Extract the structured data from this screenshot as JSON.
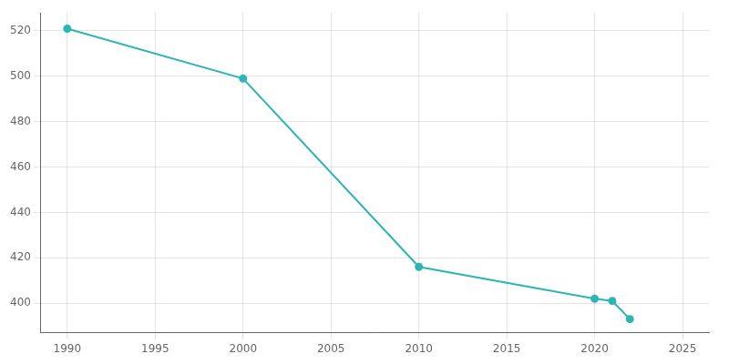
{
  "chart_data": {
    "type": "line",
    "x": [
      1990,
      2000,
      2010,
      2020,
      2021,
      2022
    ],
    "values": [
      521,
      499,
      416,
      402,
      401,
      393
    ],
    "color": "#2cb5b5",
    "marker": "circle",
    "xlim": [
      1988.5,
      2026.5
    ],
    "ylim": [
      387,
      528
    ],
    "xticks": [
      1990,
      1995,
      2000,
      2005,
      2010,
      2015,
      2020,
      2025
    ],
    "yticks": [
      400,
      420,
      440,
      460,
      480,
      500,
      520
    ],
    "grid": true
  }
}
